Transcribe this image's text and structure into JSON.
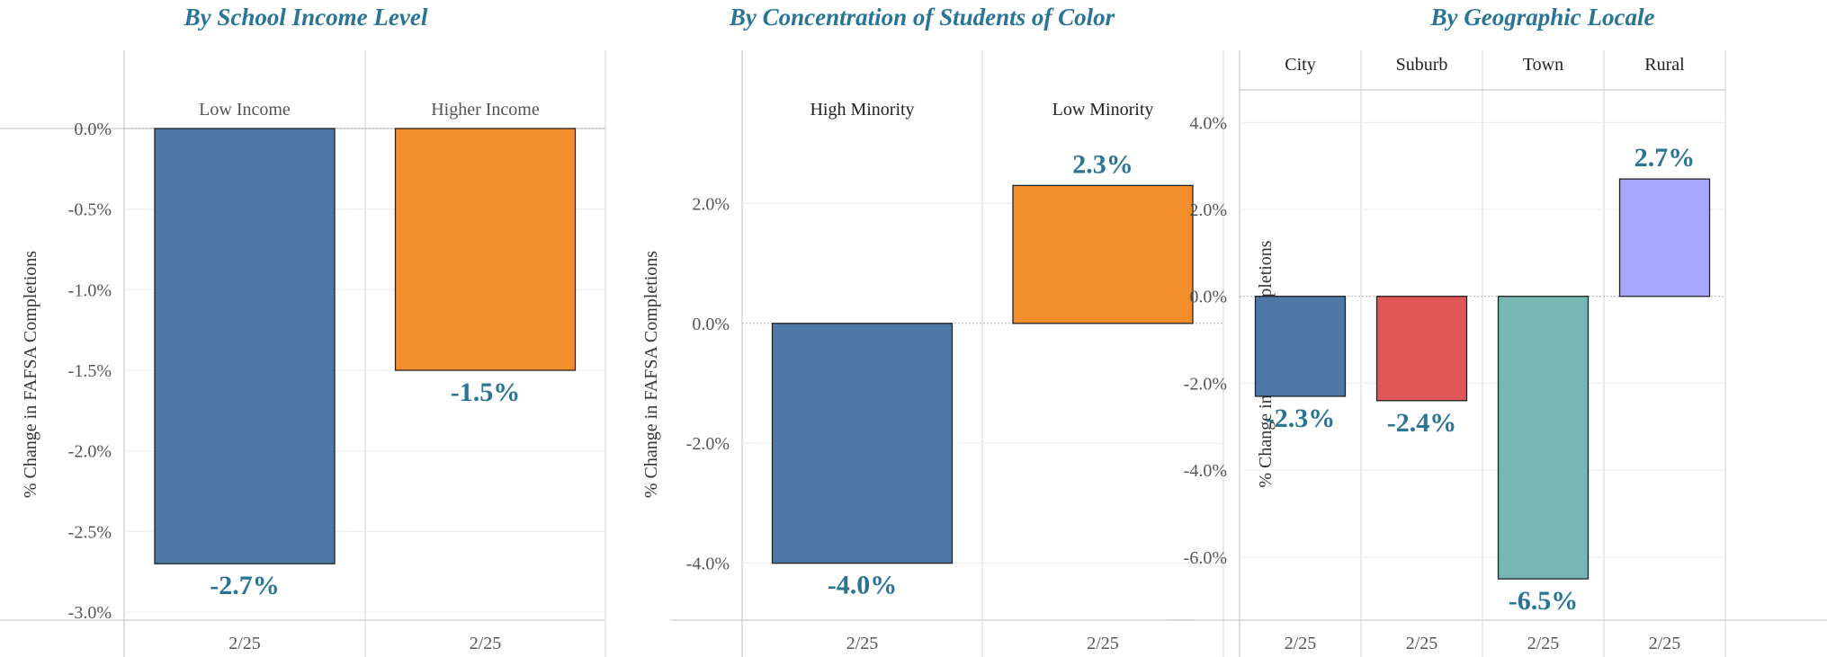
{
  "chart_data": [
    {
      "type": "bar",
      "title": "By School Income Level",
      "ylabel": "% Change in FAFSA Completions",
      "ylim": [
        -3.05,
        0.0
      ],
      "yticks": [
        "0.0%",
        "-0.5%",
        "-1.0%",
        "-1.5%",
        "-2.0%",
        "-2.5%",
        "-3.0%"
      ],
      "ytick_values": [
        0,
        -0.5,
        -1.0,
        -1.5,
        -2.0,
        -2.5,
        -3.0
      ],
      "categories": [
        "Low Income",
        "Higher Income"
      ],
      "x_labels": [
        "2/25",
        "2/25"
      ],
      "values": [
        -2.7,
        -1.5
      ],
      "data_labels": [
        "-2.7%",
        "-1.5%"
      ],
      "colors": [
        "#4e79a7",
        "#f28e2b"
      ],
      "grid": true
    },
    {
      "type": "bar",
      "title": "By Concentration of Students of Color",
      "ylabel": "% Change in FAFSA Completions",
      "ylim": [
        -4.95,
        3.25
      ],
      "yticks": [
        "2.0%",
        "0.0%",
        "-2.0%",
        "-4.0%"
      ],
      "ytick_values": [
        2.0,
        0.0,
        -2.0,
        -4.0
      ],
      "categories": [
        "High Minority",
        "Low Minority"
      ],
      "x_labels": [
        "2/25",
        "2/25"
      ],
      "values": [
        -4.0,
        2.3
      ],
      "data_labels": [
        "-4.0%",
        "2.3%"
      ],
      "colors": [
        "#4e79a7",
        "#f28e2b"
      ],
      "grid": true
    },
    {
      "type": "bar",
      "title": "By Geographic Locale",
      "ylabel": "% Change in FAFSA Completions",
      "ylim": [
        -7.45,
        4.75
      ],
      "yticks": [
        "4.0%",
        "2.0%",
        "0.0%",
        "-2.0%",
        "-4.0%",
        "-6.0%"
      ],
      "ytick_values": [
        4.0,
        2.0,
        0.0,
        -2.0,
        -4.0,
        -6.0
      ],
      "categories": [
        "City",
        "Suburb",
        "Town",
        "Rural"
      ],
      "x_labels": [
        "2/25",
        "2/25",
        "2/25",
        "2/25"
      ],
      "values": [
        -2.3,
        -2.4,
        -6.5,
        2.7
      ],
      "data_labels": [
        "-2.3%",
        "-2.4%",
        "-6.5%",
        "2.7%"
      ],
      "colors": [
        "#4e79a7",
        "#e15759",
        "#76b7b2",
        "#a6a6ff"
      ],
      "grid": true
    }
  ]
}
